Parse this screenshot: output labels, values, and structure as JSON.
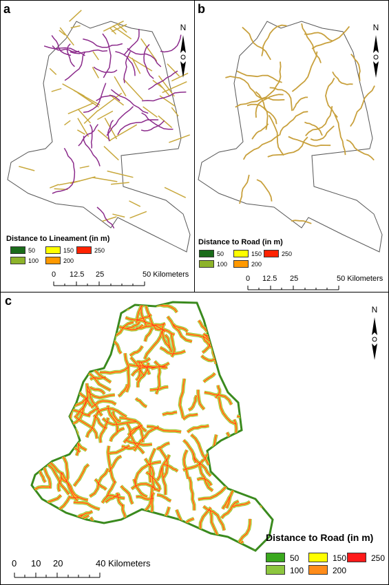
{
  "panels": {
    "a": {
      "label": "a",
      "legend_title": "Distance to Lineament (in m)",
      "legend": [
        {
          "label": "50",
          "color": "#1a6b1a"
        },
        {
          "label": "100",
          "color": "#8db32a"
        },
        {
          "label": "150",
          "color": "#ffff00"
        },
        {
          "label": "200",
          "color": "#ff9900"
        },
        {
          "label": "250",
          "color": "#ff2200"
        }
      ],
      "scale_ticks": [
        "0",
        "12.5",
        "25",
        "50 Kilometers"
      ]
    },
    "b": {
      "label": "b",
      "legend_title": "Distance to Road (in m)",
      "legend": [
        {
          "label": "50",
          "color": "#1a6b1a"
        },
        {
          "label": "100",
          "color": "#8db32a"
        },
        {
          "label": "150",
          "color": "#ffff00"
        },
        {
          "label": "200",
          "color": "#ff9900"
        },
        {
          "label": "250",
          "color": "#ff2200"
        }
      ],
      "scale_ticks": [
        "0",
        "12.5",
        "25",
        "50 Kilometers"
      ]
    },
    "c": {
      "label": "c",
      "legend_title": "Distance to Road (in m)",
      "legend": [
        {
          "label": "50",
          "color": "#3aa81e"
        },
        {
          "label": "100",
          "color": "#8dc63f"
        },
        {
          "label": "150",
          "color": "#ffff00"
        },
        {
          "label": "200",
          "color": "#ff8c1a"
        },
        {
          "label": "250",
          "color": "#ff1a1a"
        }
      ],
      "scale_ticks": [
        "0",
        "10",
        "20",
        "40 Kilometers"
      ]
    }
  },
  "north_label": "N",
  "colors": {
    "lineament": "#c8a83c",
    "drainage": "#8b2a8b",
    "road": "#c8a03c",
    "buffer_outer": "#8dc63f",
    "buffer_inner": "#ff5a1a",
    "boundary": "#555555"
  }
}
